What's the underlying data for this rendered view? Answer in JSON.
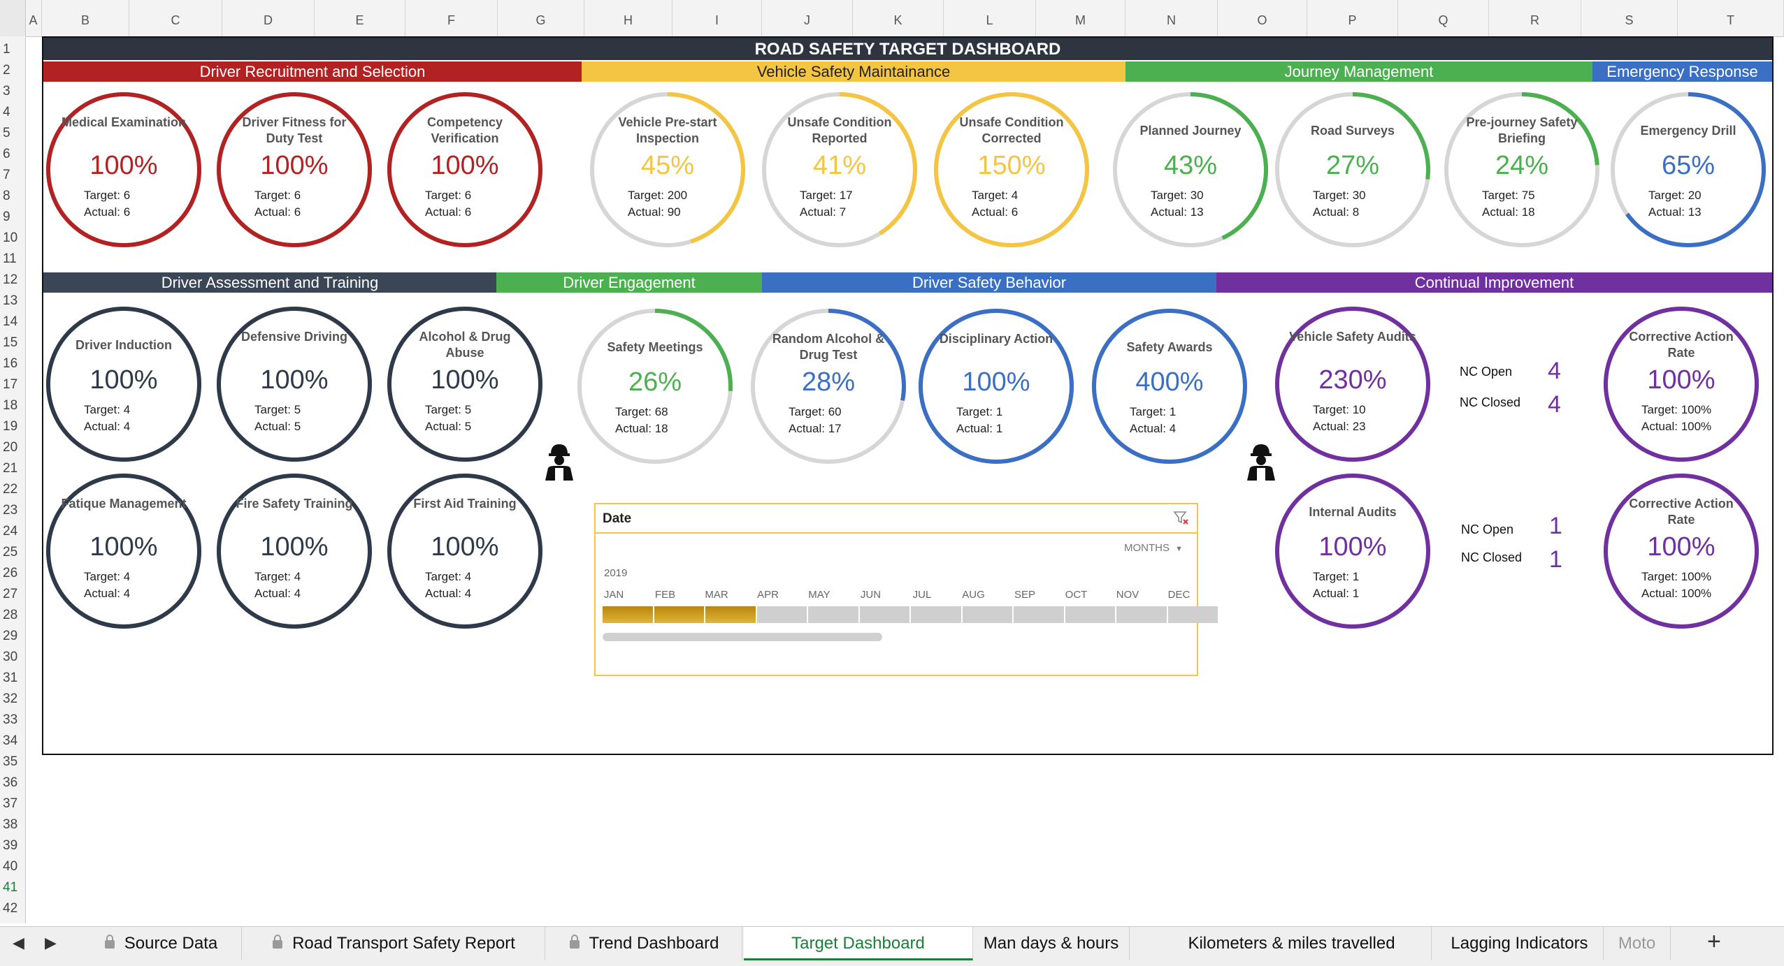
{
  "columns": [
    "A",
    "B",
    "C",
    "D",
    "E",
    "F",
    "G",
    "H",
    "I",
    "J",
    "K",
    "L",
    "M",
    "N",
    "O",
    "P",
    "Q",
    "R",
    "S",
    "T"
  ],
  "rows": [
    "1",
    "2",
    "3",
    "4",
    "5",
    "6",
    "7",
    "8",
    "9",
    "10",
    "11",
    "12",
    "13",
    "14",
    "15",
    "16",
    "17",
    "18",
    "19",
    "20",
    "21",
    "22",
    "23",
    "24",
    "25",
    "26",
    "27",
    "28",
    "29",
    "30",
    "31",
    "32",
    "33",
    "34",
    "35",
    "36",
    "37",
    "38",
    "39",
    "40",
    "41",
    "42"
  ],
  "title": "ROAD SAFETY TARGET DASHBOARD",
  "bands": [
    {
      "label": "Driver Recruitment and Selection",
      "color": "#b22222"
    },
    {
      "label": "Vehicle Safety Maintainance",
      "color": "#f4c542",
      "text": "#222"
    },
    {
      "label": "Journey Management",
      "color": "#4caf50"
    },
    {
      "label": "Emergency Response",
      "color": "#3a6fc4"
    },
    {
      "label": "Driver Assessment and Training",
      "color": "#3a4556"
    },
    {
      "label": "Driver Engagement",
      "color": "#4caf50"
    },
    {
      "label": "Driver Safety Behavior",
      "color": "#3a6fc4"
    },
    {
      "label": "Continual Improvement",
      "color": "#7030a0"
    }
  ],
  "gauges": [
    {
      "title": "Medical Examination",
      "pct": "100%",
      "target": "Target: 6",
      "actual": "Actual: 6",
      "fill": 1.0,
      "color": "#b22222"
    },
    {
      "title": "Driver Fitness for Duty Test",
      "pct": "100%",
      "target": "Target: 6",
      "actual": "Actual: 6",
      "fill": 1.0,
      "color": "#b22222"
    },
    {
      "title": "Competency Verification",
      "pct": "100%",
      "target": "Target: 6",
      "actual": "Actual: 6",
      "fill": 1.0,
      "color": "#b22222"
    },
    {
      "title": "Vehicle Pre-start Inspection",
      "pct": "45%",
      "target": "Target: 200",
      "actual": "Actual: 90",
      "fill": 0.45,
      "color": "#f4c542"
    },
    {
      "title": "Unsafe Condition Reported",
      "pct": "41%",
      "target": "Target: 17",
      "actual": "Actual: 7",
      "fill": 0.41,
      "color": "#f4c542"
    },
    {
      "title": "Unsafe Condition Corrected",
      "pct": "150%",
      "target": "Target: 4",
      "actual": "Actual: 6",
      "fill": 1.0,
      "color": "#f4c542"
    },
    {
      "title": "Planned Journey",
      "pct": "43%",
      "target": "Target: 30",
      "actual": "Actual: 13",
      "fill": 0.43,
      "color": "#4caf50"
    },
    {
      "title": "Road Surveys",
      "pct": "27%",
      "target": "Target: 30",
      "actual": "Actual: 8",
      "fill": 0.27,
      "color": "#4caf50"
    },
    {
      "title": "Pre-journey Safety Briefing",
      "pct": "24%",
      "target": "Target: 75",
      "actual": "Actual: 18",
      "fill": 0.24,
      "color": "#4caf50"
    },
    {
      "title": "Emergency Drill",
      "pct": "65%",
      "target": "Target: 20",
      "actual": "Actual: 13",
      "fill": 0.65,
      "color": "#3a6fc4"
    },
    {
      "title": "Driver Induction",
      "pct": "100%",
      "target": "Target: 4",
      "actual": "Actual: 4",
      "fill": 1.0,
      "color": "#2e3a4a"
    },
    {
      "title": "Defensive Driving",
      "pct": "100%",
      "target": "Target: 5",
      "actual": "Actual: 5",
      "fill": 1.0,
      "color": "#2e3a4a"
    },
    {
      "title": "Alcohol & Drug Abuse",
      "pct": "100%",
      "target": "Target: 5",
      "actual": "Actual: 5",
      "fill": 1.0,
      "color": "#2e3a4a"
    },
    {
      "title": "Safety Meetings",
      "pct": "26%",
      "target": "Target: 68",
      "actual": "Actual: 18",
      "fill": 0.26,
      "color": "#4caf50"
    },
    {
      "title": "Random Alcohol & Drug Test",
      "pct": "28%",
      "target": "Target: 60",
      "actual": "Actual: 17",
      "fill": 0.28,
      "color": "#3a6fc4"
    },
    {
      "title": "Disciplinary Action",
      "pct": "100%",
      "target": "Target: 1",
      "actual": "Actual: 1",
      "fill": 1.0,
      "color": "#3a6fc4"
    },
    {
      "title": "Safety Awards",
      "pct": "400%",
      "target": "Target: 1",
      "actual": "Actual: 4",
      "fill": 1.0,
      "color": "#3a6fc4"
    },
    {
      "title": "Vehicle Safety Audits",
      "pct": "230%",
      "target": "Target: 10",
      "actual": "Actual: 23",
      "fill": 1.0,
      "color": "#7030a0"
    },
    {
      "title": "Corrective Action Rate",
      "pct": "100%",
      "target": "Target: 100%",
      "actual": "Actual: 100%",
      "fill": 1.0,
      "color": "#7030a0"
    },
    {
      "title": "Fatique Management",
      "pct": "100%",
      "target": "Target: 4",
      "actual": "Actual: 4",
      "fill": 1.0,
      "color": "#2e3a4a"
    },
    {
      "title": "Fire Safety Training",
      "pct": "100%",
      "target": "Target: 4",
      "actual": "Actual: 4",
      "fill": 1.0,
      "color": "#2e3a4a"
    },
    {
      "title": "First Aid Training",
      "pct": "100%",
      "target": "Target: 4",
      "actual": "Actual: 4",
      "fill": 1.0,
      "color": "#2e3a4a"
    },
    {
      "title": "Internal Audits",
      "pct": "100%",
      "target": "Target: 1",
      "actual": "Actual: 1",
      "fill": 1.0,
      "color": "#7030a0"
    },
    {
      "title": "Corrective Action Rate",
      "pct": "100%",
      "target": "Target: 100%",
      "actual": "Actual: 100%",
      "fill": 1.0,
      "color": "#7030a0"
    }
  ],
  "nc": {
    "open_label": "NC Open",
    "closed_label": "NC Closed",
    "audit_open": "4",
    "audit_closed": "4",
    "internal_open": "1",
    "internal_closed": "1"
  },
  "slicer": {
    "title": "Date",
    "level": "MONTHS",
    "year": "2019",
    "months": [
      "JAN",
      "FEB",
      "MAR",
      "APR",
      "MAY",
      "JUN",
      "JUL",
      "AUG",
      "SEP",
      "OCT",
      "NOV",
      "DEC"
    ],
    "selected_months": [
      "JAN",
      "FEB",
      "MAR"
    ]
  },
  "tabs": [
    {
      "label": "Source Data",
      "locked": true
    },
    {
      "label": "Road Transport Safety Report",
      "locked": true
    },
    {
      "label": "Trend Dashboard",
      "locked": true
    },
    {
      "label": "Target Dashboard",
      "active": true
    },
    {
      "label": "Man days & hours"
    },
    {
      "label": "Kilometers & miles travelled"
    },
    {
      "label": "Lagging Indicators"
    },
    {
      "label": "Moto"
    }
  ],
  "icons": [
    "filter-clear-icon",
    "worker-icon",
    "lock-icon",
    "scroll-left-icon",
    "scroll-right-icon",
    "add-sheet-icon",
    "dropdown-arrow-icon"
  ]
}
